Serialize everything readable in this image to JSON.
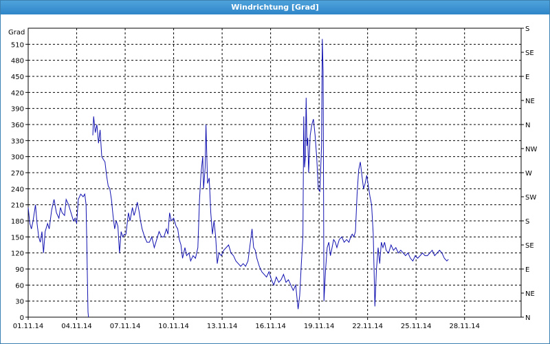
{
  "window": {
    "title": "Windrichtung [Grad]"
  },
  "chart_data": {
    "type": "line",
    "title": "Windrichtung [Grad]",
    "ylabel": "Grad",
    "xlabel": "",
    "x_unit": "days",
    "xlim": [
      0,
      30.5
    ],
    "ylim": [
      0,
      540
    ],
    "grid": true,
    "legend": "none",
    "x_ticks": [
      {
        "x": 0,
        "label": "01.11.14"
      },
      {
        "x": 3,
        "label": "04.11.14"
      },
      {
        "x": 6,
        "label": "07.11.14"
      },
      {
        "x": 9,
        "label": "10.11.14"
      },
      {
        "x": 12,
        "label": "13.11.14"
      },
      {
        "x": 15,
        "label": "16.11.14"
      },
      {
        "x": 18,
        "label": "19.11.14"
      },
      {
        "x": 21,
        "label": "22.11.14"
      },
      {
        "x": 24,
        "label": "25.11.14"
      },
      {
        "x": 27,
        "label": "28.11.14"
      }
    ],
    "y_ticks": [
      0,
      30,
      60,
      90,
      120,
      150,
      180,
      210,
      240,
      270,
      300,
      330,
      360,
      390,
      420,
      450,
      480,
      510
    ],
    "y_ticks_right": [
      {
        "y": 0,
        "label": "N"
      },
      {
        "y": 45,
        "label": "NE"
      },
      {
        "y": 90,
        "label": "E"
      },
      {
        "y": 135,
        "label": "SE"
      },
      {
        "y": 180,
        "label": "S"
      },
      {
        "y": 225,
        "label": "SW"
      },
      {
        "y": 270,
        "label": "W"
      },
      {
        "y": 315,
        "label": "NW"
      },
      {
        "y": 360,
        "label": "N"
      },
      {
        "y": 405,
        "label": "NE"
      },
      {
        "y": 450,
        "label": "E"
      },
      {
        "y": 495,
        "label": "SE"
      },
      {
        "y": 540,
        "label": "S"
      }
    ],
    "series": [
      {
        "color": "#1010b0",
        "points": [
          [
            0.0,
            205
          ],
          [
            0.1,
            175
          ],
          [
            0.2,
            165
          ],
          [
            0.3,
            180
          ],
          [
            0.45,
            210
          ],
          [
            0.55,
            175
          ],
          [
            0.65,
            150
          ],
          [
            0.75,
            140
          ],
          [
            0.85,
            160
          ],
          [
            0.95,
            120
          ],
          [
            1.05,
            160
          ],
          [
            1.2,
            175
          ],
          [
            1.3,
            165
          ],
          [
            1.45,
            200
          ],
          [
            1.6,
            220
          ],
          [
            1.75,
            195
          ],
          [
            1.9,
            185
          ],
          [
            2.0,
            205
          ],
          [
            2.1,
            195
          ],
          [
            2.25,
            190
          ],
          [
            2.35,
            220
          ],
          [
            2.5,
            210
          ],
          [
            2.65,
            195
          ],
          [
            2.8,
            180
          ],
          [
            2.9,
            185
          ],
          [
            3.0,
            175
          ],
          [
            3.1,
            220
          ],
          [
            3.25,
            230
          ],
          [
            3.4,
            225
          ],
          [
            3.5,
            230
          ],
          [
            3.58,
            210
          ],
          [
            3.62,
            150
          ],
          [
            3.67,
            60
          ],
          [
            3.7,
            10
          ],
          [
            3.73,
            0
          ],
          [
            4.0,
            340
          ],
          [
            4.05,
            375
          ],
          [
            4.15,
            345
          ],
          [
            4.25,
            360
          ],
          [
            4.35,
            325
          ],
          [
            4.45,
            350
          ],
          [
            4.55,
            300
          ],
          [
            4.65,
            295
          ],
          [
            4.75,
            290
          ],
          [
            4.85,
            265
          ],
          [
            4.95,
            245
          ],
          [
            5.05,
            240
          ],
          [
            5.15,
            220
          ],
          [
            5.25,
            190
          ],
          [
            5.35,
            165
          ],
          [
            5.45,
            180
          ],
          [
            5.55,
            170
          ],
          [
            5.65,
            120
          ],
          [
            5.75,
            160
          ],
          [
            5.85,
            150
          ],
          [
            5.95,
            155
          ],
          [
            6.05,
            155
          ],
          [
            6.2,
            195
          ],
          [
            6.3,
            180
          ],
          [
            6.45,
            205
          ],
          [
            6.55,
            190
          ],
          [
            6.65,
            200
          ],
          [
            6.75,
            215
          ],
          [
            6.85,
            200
          ],
          [
            6.95,
            180
          ],
          [
            7.05,
            165
          ],
          [
            7.2,
            150
          ],
          [
            7.35,
            140
          ],
          [
            7.5,
            140
          ],
          [
            7.65,
            150
          ],
          [
            7.8,
            130
          ],
          [
            7.95,
            145
          ],
          [
            8.1,
            160
          ],
          [
            8.25,
            150
          ],
          [
            8.4,
            150
          ],
          [
            8.55,
            165
          ],
          [
            8.65,
            155
          ],
          [
            8.75,
            195
          ],
          [
            8.85,
            180
          ],
          [
            9.0,
            185
          ],
          [
            9.15,
            170
          ],
          [
            9.25,
            165
          ],
          [
            9.35,
            145
          ],
          [
            9.45,
            135
          ],
          [
            9.55,
            110
          ],
          [
            9.7,
            130
          ],
          [
            9.8,
            115
          ],
          [
            9.95,
            120
          ],
          [
            10.05,
            105
          ],
          [
            10.2,
            115
          ],
          [
            10.35,
            110
          ],
          [
            10.5,
            130
          ],
          [
            10.6,
            220
          ],
          [
            10.7,
            270
          ],
          [
            10.8,
            300
          ],
          [
            10.85,
            240
          ],
          [
            10.95,
            280
          ],
          [
            11.0,
            360
          ],
          [
            11.1,
            250
          ],
          [
            11.2,
            260
          ],
          [
            11.3,
            195
          ],
          [
            11.4,
            155
          ],
          [
            11.5,
            180
          ],
          [
            11.6,
            150
          ],
          [
            11.7,
            100
          ],
          [
            11.8,
            120
          ],
          [
            11.95,
            115
          ],
          [
            12.1,
            125
          ],
          [
            12.25,
            130
          ],
          [
            12.4,
            135
          ],
          [
            12.55,
            120
          ],
          [
            12.7,
            115
          ],
          [
            12.85,
            105
          ],
          [
            13.0,
            100
          ],
          [
            13.15,
            95
          ],
          [
            13.3,
            100
          ],
          [
            13.45,
            95
          ],
          [
            13.6,
            105
          ],
          [
            13.75,
            140
          ],
          [
            13.85,
            165
          ],
          [
            13.95,
            130
          ],
          [
            14.05,
            125
          ],
          [
            14.15,
            110
          ],
          [
            14.3,
            95
          ],
          [
            14.45,
            85
          ],
          [
            14.6,
            80
          ],
          [
            14.75,
            75
          ],
          [
            14.9,
            85
          ],
          [
            15.05,
            70
          ],
          [
            15.2,
            60
          ],
          [
            15.35,
            75
          ],
          [
            15.5,
            65
          ],
          [
            15.65,
            70
          ],
          [
            15.8,
            80
          ],
          [
            15.95,
            65
          ],
          [
            16.1,
            70
          ],
          [
            16.25,
            60
          ],
          [
            16.4,
            50
          ],
          [
            16.55,
            60
          ],
          [
            16.7,
            15
          ],
          [
            16.8,
            40
          ],
          [
            16.9,
            100
          ],
          [
            17.0,
            150
          ],
          [
            17.05,
            375
          ],
          [
            17.1,
            280
          ],
          [
            17.15,
            300
          ],
          [
            17.2,
            410
          ],
          [
            17.25,
            320
          ],
          [
            17.3,
            335
          ],
          [
            17.35,
            270
          ],
          [
            17.45,
            340
          ],
          [
            17.55,
            360
          ],
          [
            17.65,
            370
          ],
          [
            17.75,
            340
          ],
          [
            17.85,
            300
          ],
          [
            17.95,
            240
          ],
          [
            18.05,
            235
          ],
          [
            18.15,
            320
          ],
          [
            18.2,
            520
          ],
          [
            18.25,
            460
          ],
          [
            18.3,
            30
          ],
          [
            18.4,
            90
          ],
          [
            18.5,
            130
          ],
          [
            18.6,
            140
          ],
          [
            18.7,
            115
          ],
          [
            18.8,
            130
          ],
          [
            18.9,
            145
          ],
          [
            19.0,
            140
          ],
          [
            19.1,
            130
          ],
          [
            19.25,
            145
          ],
          [
            19.4,
            150
          ],
          [
            19.55,
            140
          ],
          [
            19.7,
            145
          ],
          [
            19.85,
            140
          ],
          [
            19.95,
            150
          ],
          [
            20.05,
            155
          ],
          [
            20.15,
            150
          ],
          [
            20.25,
            160
          ],
          [
            20.35,
            230
          ],
          [
            20.45,
            275
          ],
          [
            20.55,
            290
          ],
          [
            20.65,
            265
          ],
          [
            20.75,
            240
          ],
          [
            20.85,
            250
          ],
          [
            20.95,
            265
          ],
          [
            21.05,
            245
          ],
          [
            21.15,
            225
          ],
          [
            21.25,
            210
          ],
          [
            21.35,
            155
          ],
          [
            21.45,
            20
          ],
          [
            21.55,
            90
          ],
          [
            21.65,
            130
          ],
          [
            21.75,
            100
          ],
          [
            21.85,
            140
          ],
          [
            21.95,
            130
          ],
          [
            22.05,
            140
          ],
          [
            22.15,
            125
          ],
          [
            22.3,
            120
          ],
          [
            22.45,
            135
          ],
          [
            22.6,
            125
          ],
          [
            22.75,
            130
          ],
          [
            22.9,
            120
          ],
          [
            23.05,
            125
          ],
          [
            23.2,
            120
          ],
          [
            23.35,
            115
          ],
          [
            23.5,
            120
          ],
          [
            23.65,
            110
          ],
          [
            23.8,
            105
          ],
          [
            23.95,
            115
          ],
          [
            24.1,
            110
          ],
          [
            24.25,
            115
          ],
          [
            24.4,
            120
          ],
          [
            24.55,
            115
          ],
          [
            24.7,
            115
          ],
          [
            24.85,
            120
          ],
          [
            25.0,
            125
          ],
          [
            25.15,
            115
          ],
          [
            25.3,
            120
          ],
          [
            25.45,
            125
          ],
          [
            25.6,
            120
          ],
          [
            25.75,
            110
          ],
          [
            25.9,
            105
          ],
          [
            26.0,
            108
          ]
        ]
      }
    ]
  }
}
